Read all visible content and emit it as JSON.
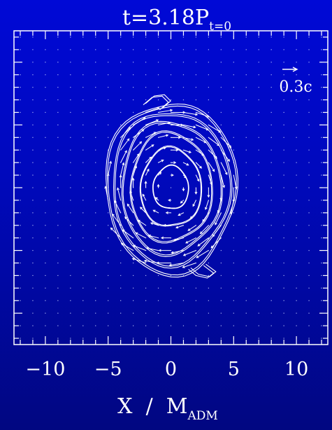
{
  "chart_data": {
    "type": "vector-contour",
    "title_main": "t=3.18P",
    "title_sub": "t=0",
    "xlabel_main": "X  /  M",
    "xlabel_sub": "ADM",
    "xlim": [
      -12.5,
      12.5
    ],
    "ylim": [
      -12.5,
      12.5
    ],
    "x_ticks": [
      -10,
      -5,
      0,
      5,
      10
    ],
    "x_tick_labels": [
      "−10",
      "−5",
      "0",
      "5",
      "10"
    ],
    "legend_arrow_label": "0.3c",
    "legend_arrow_speed": 0.3,
    "grid": "dotted",
    "contours": [
      {
        "rx": 5.1,
        "ry": 6.7
      },
      {
        "rx": 4.6,
        "ry": 6.0
      },
      {
        "rx": 3.9,
        "ry": 5.2
      },
      {
        "rx": 3.2,
        "ry": 4.3
      },
      {
        "rx": 2.4,
        "ry": 3.1
      },
      {
        "rx": 1.4,
        "ry": 1.7
      }
    ],
    "arm_contours": [
      {
        "points": [
          [
            -2.2,
            6.6
          ],
          [
            -1.5,
            7.2
          ],
          [
            -0.7,
            7.3
          ],
          [
            -0.2,
            6.8
          ],
          [
            -0.9,
            6.2
          ]
        ]
      },
      {
        "points": [
          [
            1.4,
            -6.5
          ],
          [
            2.0,
            -7.0
          ],
          [
            2.9,
            -7.2
          ],
          [
            3.4,
            -6.8
          ],
          [
            2.6,
            -6.2
          ]
        ]
      }
    ],
    "flow": {
      "type": "rotation",
      "direction": "clockwise",
      "max_speed": 0.3,
      "radius": 6.8
    }
  },
  "colors": {
    "background": "#0009c8",
    "foreground": "#ffffff"
  }
}
